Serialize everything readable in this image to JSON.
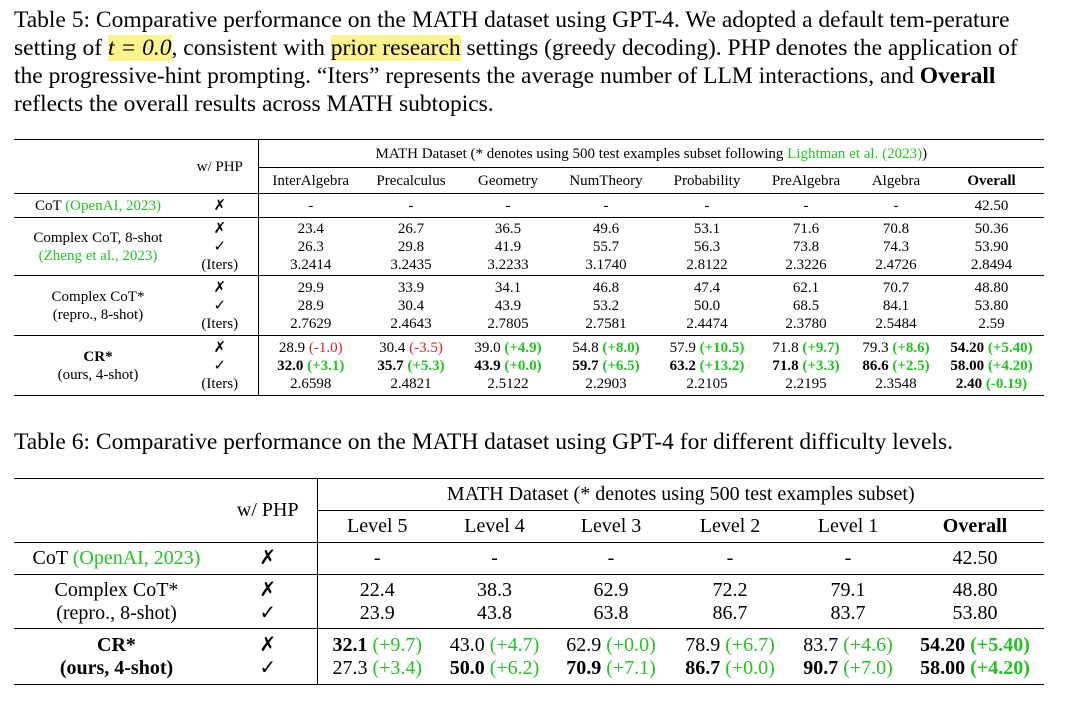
{
  "table5": {
    "caption_lead": "Table 5:",
    "caption_a": "Comparative performance on the MATH dataset using GPT-4. We adopted a default tem-perature setting of",
    "caption_t": "t = 0.0",
    "caption_b": ", consistent with",
    "caption_highlight": "prior research",
    "caption_c": "settings (greedy decoding). PHP denotes the application of the progressive-hint prompting. “Iters” represents the average number of LLM interactions, and",
    "caption_bold": "Overall",
    "caption_d": "reflects the overall results across MATH subtopics.",
    "wphp": "w/ PHP",
    "group_header_a": "MATH Dataset (* denotes using 500 test examples subset following",
    "group_header_cite": "Lightman et al. (2023)",
    "group_header_b": ")",
    "columns": [
      "InterAlgebra",
      "Precalculus",
      "Geometry",
      "NumTheory",
      "Probability",
      "PreAlgebra",
      "Algebra",
      "Overall"
    ],
    "cot": {
      "name": "CoT",
      "cite": "(OpenAI, 2023)",
      "php": "✗",
      "values": [
        "-",
        "-",
        "-",
        "-",
        "-",
        "-",
        "-",
        "42.50"
      ]
    },
    "complex": {
      "name_line1": "Complex CoT, 8-shot",
      "cite": "(Zheng et al., 2023)",
      "php": [
        "✗",
        "✓",
        "(Iters)"
      ],
      "values": [
        [
          "23.4",
          "26.3",
          "3.2414"
        ],
        [
          "26.7",
          "29.8",
          "3.2435"
        ],
        [
          "36.5",
          "41.9",
          "3.2233"
        ],
        [
          "49.6",
          "55.7",
          "3.1740"
        ],
        [
          "53.1",
          "56.3",
          "2.8122"
        ],
        [
          "71.6",
          "73.8",
          "2.3226"
        ],
        [
          "70.8",
          "74.3",
          "2.4726"
        ],
        [
          "50.36",
          "53.90",
          "2.8494"
        ]
      ]
    },
    "repro": {
      "name_line1": "Complex CoT*",
      "name_line2": "(repro., 8-shot)",
      "php": [
        "✗",
        "✓",
        "(Iters)"
      ],
      "values": [
        [
          "29.9",
          "28.9",
          "2.7629"
        ],
        [
          "33.9",
          "30.4",
          "2.4643"
        ],
        [
          "34.1",
          "43.9",
          "2.7805"
        ],
        [
          "46.8",
          "53.2",
          "2.7581"
        ],
        [
          "47.4",
          "50.0",
          "2.4474"
        ],
        [
          "62.1",
          "68.5",
          "2.3780"
        ],
        [
          "70.7",
          "84.1",
          "2.5484"
        ],
        [
          "48.80",
          "53.80",
          "2.59"
        ]
      ]
    },
    "cr": {
      "name_line1": "CR*",
      "name_line2": "(ours, 4-shot)",
      "php": [
        "✗",
        "✓",
        "(Iters)"
      ],
      "row1": [
        [
          "28.9",
          "(-1.0)"
        ],
        [
          "30.4",
          "(-3.5)"
        ],
        [
          "39.0",
          "(+4.9)"
        ],
        [
          "54.8",
          "(+8.0)"
        ],
        [
          "57.9",
          "(+10.5)"
        ],
        [
          "71.8",
          "(+9.7)"
        ],
        [
          "79.3",
          "(+8.6)"
        ],
        [
          "54.20",
          "(+5.40)"
        ]
      ],
      "row2": [
        [
          "32.0",
          "(+3.1)"
        ],
        [
          "35.7",
          "(+5.3)"
        ],
        [
          "43.9",
          "(+0.0)"
        ],
        [
          "59.7",
          "(+6.5)"
        ],
        [
          "63.2",
          "(+13.2)"
        ],
        [
          "71.8",
          "(+3.3)"
        ],
        [
          "86.6",
          "(+2.5)"
        ],
        [
          "58.00",
          "(+4.20)"
        ]
      ],
      "row3": [
        "2.6598",
        "2.4821",
        "2.5122",
        "2.2903",
        "2.2105",
        "2.2195",
        "2.3548"
      ],
      "row3_overall": [
        "2.40",
        "(-0.19)"
      ]
    }
  },
  "table6": {
    "caption_lead": "Table 6:",
    "caption": "Comparative performance on the MATH dataset using GPT-4 for different difficulty levels.",
    "wphp": "w/ PHP",
    "group_header": "MATH Dataset (* denotes using 500 test examples subset)",
    "columns": [
      "Level 5",
      "Level 4",
      "Level 3",
      "Level 2",
      "Level 1",
      "Overall"
    ],
    "cot": {
      "name": "CoT",
      "cite": "(OpenAI, 2023)",
      "php": "✗",
      "values": [
        "-",
        "-",
        "-",
        "-",
        "-",
        "42.50"
      ]
    },
    "repro": {
      "name_line1": "Complex CoT*",
      "name_line2": "(repro., 8-shot)",
      "php": [
        "✗",
        "✓"
      ],
      "row1": [
        "22.4",
        "38.3",
        "62.9",
        "72.2",
        "79.1",
        "48.80"
      ],
      "row2": [
        "23.9",
        "43.8",
        "63.8",
        "86.7",
        "83.7",
        "53.80"
      ]
    },
    "cr": {
      "name_line1": "CR*",
      "name_line2": "(ours, 4-shot)",
      "php": [
        "✗",
        "✓"
      ],
      "row1": [
        [
          "32.1",
          "(+9.7)"
        ],
        [
          "43.0",
          "(+4.7)"
        ],
        [
          "62.9",
          "(+0.0)"
        ],
        [
          "78.9",
          "(+6.7)"
        ],
        [
          "83.7",
          "(+4.6)"
        ],
        [
          "54.20",
          "(+5.40)"
        ]
      ],
      "row2": [
        [
          "27.3",
          "(+3.4)"
        ],
        [
          "50.0",
          "(+6.2)"
        ],
        [
          "70.9",
          "(+7.1)"
        ],
        [
          "86.7",
          "(+0.0)"
        ],
        [
          "90.7",
          "(+7.0)"
        ],
        [
          "58.00",
          "(+4.20)"
        ]
      ]
    }
  },
  "colors": {
    "green": "#22c422",
    "red": "#e02020",
    "highlight": "#fbf38c"
  }
}
